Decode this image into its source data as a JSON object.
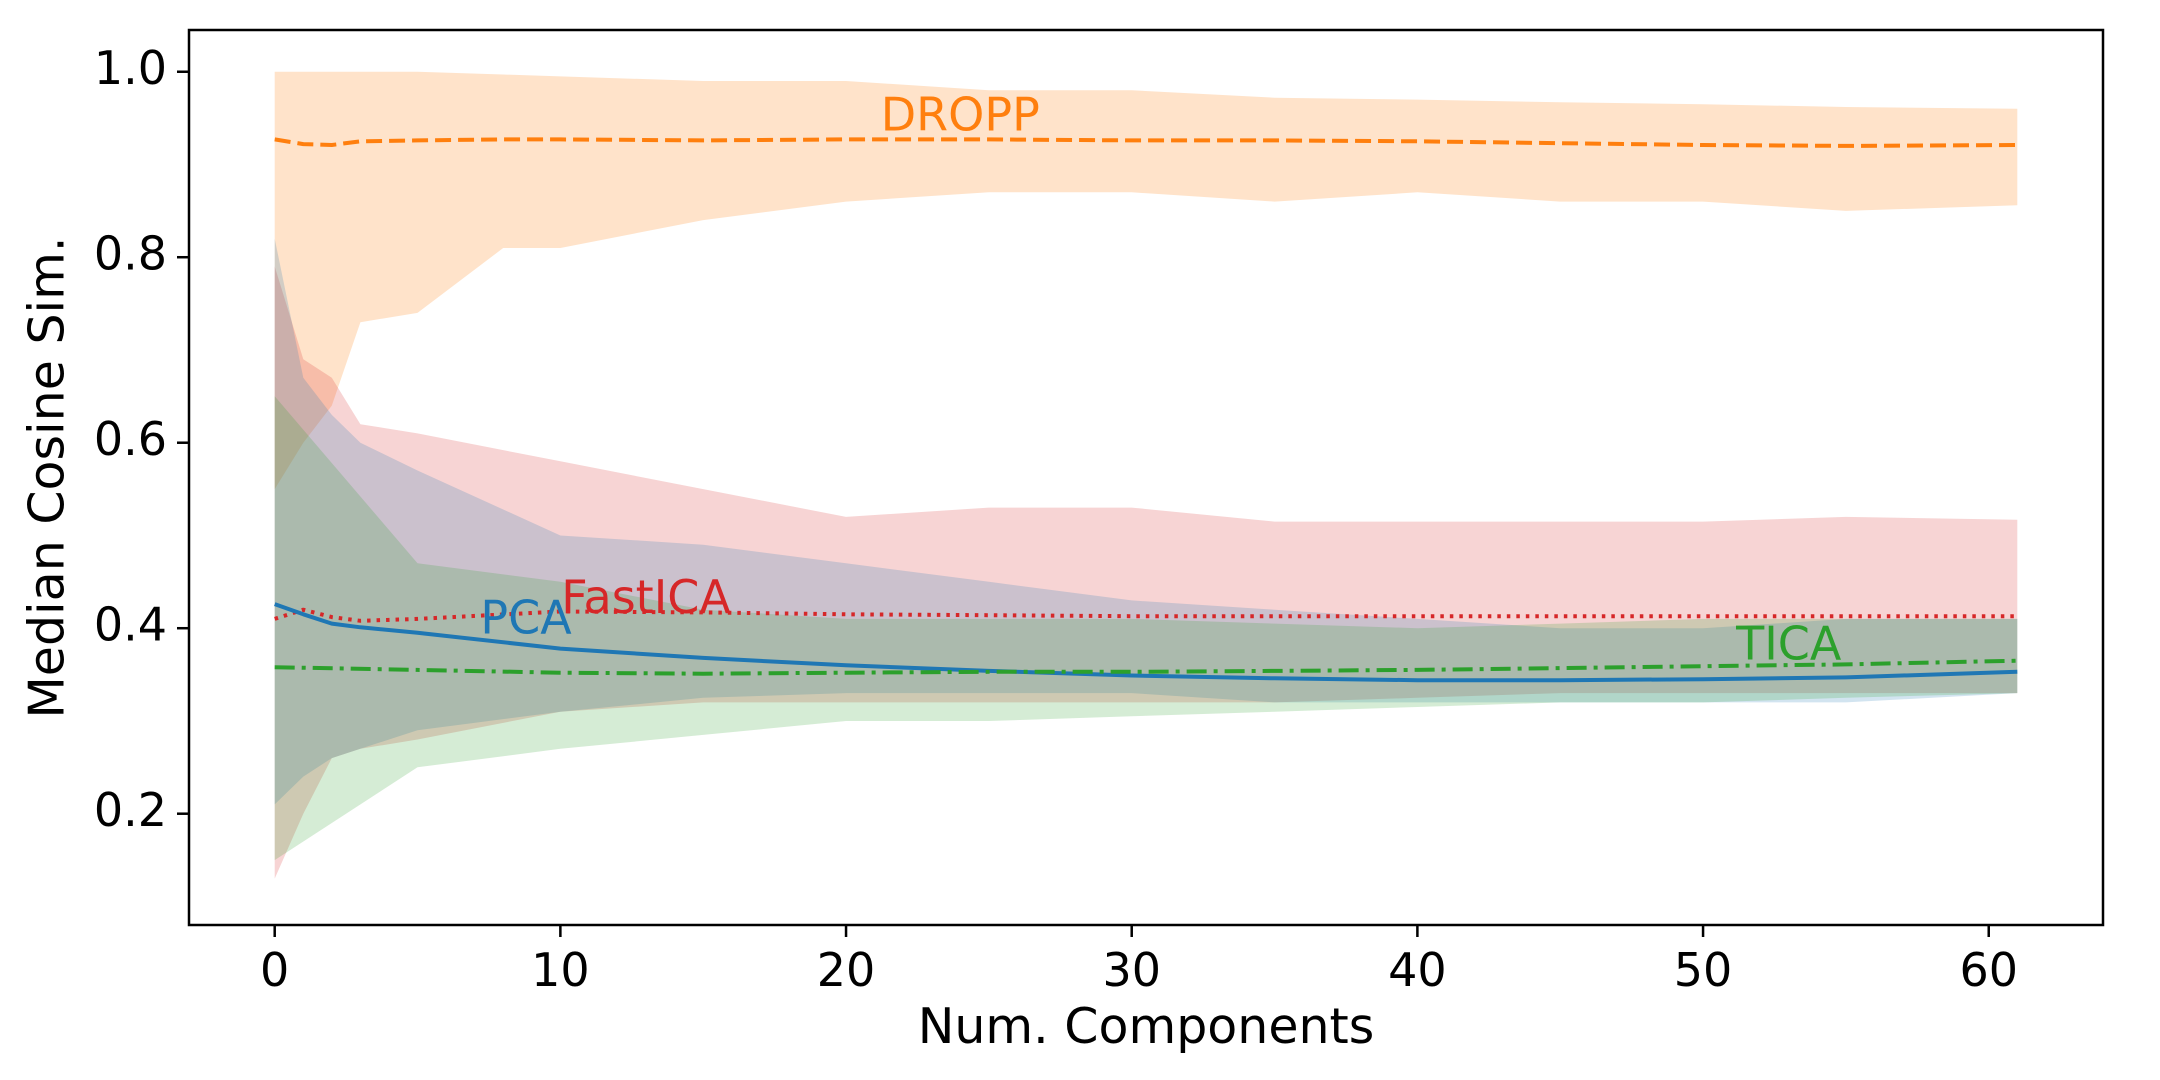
{
  "chart_data": {
    "type": "line",
    "xlabel": "Num. Components",
    "ylabel": "Median Cosine Sim.",
    "xlim": [
      -3,
      64
    ],
    "ylim": [
      0.08,
      1.045
    ],
    "xticks": [
      0,
      10,
      20,
      30,
      40,
      50,
      60
    ],
    "yticks": [
      0.2,
      0.4,
      0.6,
      0.8,
      1.0
    ],
    "x_tick_labels": [
      "0",
      "10",
      "20",
      "30",
      "40",
      "50",
      "60"
    ],
    "y_tick_labels": [
      "0.2",
      "0.4",
      "0.6",
      "0.8",
      "1.0"
    ],
    "grid": false,
    "legend": "none",
    "series": [
      {
        "name": "DROPP",
        "color": "#ff7f0e",
        "line_style": "dashed",
        "label_pos": [
          24,
          0.95
        ],
        "x": [
          0,
          1,
          2,
          3,
          5,
          8,
          10,
          15,
          20,
          25,
          30,
          35,
          40,
          45,
          50,
          55,
          61
        ],
        "y": [
          0.927,
          0.922,
          0.921,
          0.925,
          0.926,
          0.927,
          0.927,
          0.926,
          0.927,
          0.927,
          0.926,
          0.926,
          0.925,
          0.923,
          0.921,
          0.92,
          0.921
        ],
        "lower": [
          0.55,
          0.6,
          0.64,
          0.73,
          0.74,
          0.81,
          0.81,
          0.84,
          0.86,
          0.87,
          0.87,
          0.86,
          0.87,
          0.86,
          0.86,
          0.85,
          0.856
        ],
        "upper": [
          1.0,
          1.0,
          1.0,
          1.0,
          1.0,
          0.997,
          0.995,
          0.99,
          0.99,
          0.98,
          0.98,
          0.972,
          0.97,
          0.967,
          0.965,
          0.962,
          0.96
        ]
      },
      {
        "name": "FastICA",
        "color": "#d62728",
        "line_style": "dotted",
        "label_pos": [
          13,
          0.43
        ],
        "x": [
          0,
          1,
          2,
          3,
          5,
          10,
          15,
          20,
          25,
          30,
          35,
          40,
          45,
          50,
          55,
          61
        ],
        "y": [
          0.41,
          0.42,
          0.412,
          0.408,
          0.41,
          0.418,
          0.417,
          0.415,
          0.414,
          0.413,
          0.413,
          0.413,
          0.413,
          0.413,
          0.413,
          0.413
        ],
        "lower": [
          0.13,
          0.2,
          0.26,
          0.27,
          0.28,
          0.31,
          0.32,
          0.32,
          0.32,
          0.32,
          0.32,
          0.325,
          0.33,
          0.33,
          0.33,
          0.33
        ],
        "upper": [
          0.79,
          0.69,
          0.67,
          0.62,
          0.61,
          0.58,
          0.55,
          0.52,
          0.53,
          0.53,
          0.515,
          0.515,
          0.515,
          0.515,
          0.52,
          0.517
        ]
      },
      {
        "name": "PCA",
        "color": "#1f77b4",
        "line_style": "solid",
        "label_pos": [
          8.8,
          0.408
        ],
        "x": [
          0,
          1,
          2,
          3,
          5,
          10,
          15,
          20,
          25,
          30,
          35,
          40,
          45,
          50,
          55,
          61
        ],
        "y": [
          0.426,
          0.415,
          0.405,
          0.401,
          0.395,
          0.378,
          0.368,
          0.36,
          0.354,
          0.349,
          0.346,
          0.344,
          0.344,
          0.345,
          0.347,
          0.353
        ],
        "lower": [
          0.21,
          0.24,
          0.26,
          0.27,
          0.29,
          0.31,
          0.325,
          0.33,
          0.33,
          0.33,
          0.32,
          0.32,
          0.32,
          0.32,
          0.32,
          0.33
        ],
        "upper": [
          0.82,
          0.67,
          0.63,
          0.6,
          0.57,
          0.5,
          0.49,
          0.47,
          0.45,
          0.43,
          0.42,
          0.41,
          0.4,
          0.4,
          0.41,
          0.41
        ]
      },
      {
        "name": "TICA",
        "color": "#2ca02c",
        "line_style": "dashdot",
        "label_pos": [
          53,
          0.38
        ],
        "x": [
          0,
          5,
          10,
          15,
          20,
          25,
          30,
          35,
          40,
          45,
          50,
          55,
          61
        ],
        "y": [
          0.358,
          0.355,
          0.352,
          0.351,
          0.352,
          0.353,
          0.353,
          0.354,
          0.355,
          0.357,
          0.359,
          0.361,
          0.365
        ],
        "lower": [
          0.15,
          0.25,
          0.27,
          0.285,
          0.3,
          0.3,
          0.305,
          0.31,
          0.315,
          0.32,
          0.32,
          0.325,
          0.33
        ],
        "upper": [
          0.65,
          0.47,
          0.45,
          0.42,
          0.41,
          0.41,
          0.41,
          0.405,
          0.4,
          0.405,
          0.41,
          0.41,
          0.41
        ]
      }
    ]
  }
}
